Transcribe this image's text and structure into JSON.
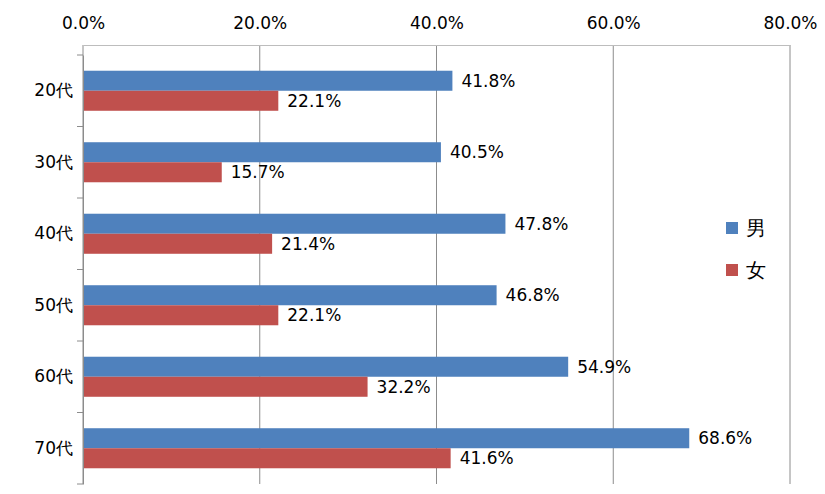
{
  "chart_data": {
    "type": "bar",
    "orientation": "horizontal",
    "categories": [
      "20代",
      "30代",
      "40代",
      "50代",
      "60代",
      "70代"
    ],
    "series": [
      {
        "name": "男",
        "color": "#4f81bd",
        "values": [
          41.8,
          40.5,
          47.8,
          46.8,
          54.9,
          68.6
        ],
        "value_labels": [
          "41.8%",
          "40.5%",
          "47.8%",
          "46.8%",
          "54.9%",
          "68.6%"
        ]
      },
      {
        "name": "女",
        "color": "#c0504d",
        "values": [
          22.1,
          15.7,
          21.4,
          22.1,
          32.2,
          41.6
        ],
        "value_labels": [
          "22.1%",
          "15.7%",
          "21.4%",
          "22.1%",
          "32.2%",
          "41.6%"
        ]
      }
    ],
    "xlim": [
      0,
      80
    ],
    "xticks": [
      {
        "value": 0,
        "label": "0.0%"
      },
      {
        "value": 20,
        "label": "20.0%"
      },
      {
        "value": 40,
        "label": "40.0%"
      },
      {
        "value": 60,
        "label": "60.0%"
      },
      {
        "value": 80,
        "label": "80.0%"
      }
    ],
    "grid": true,
    "data_labels": true,
    "legend": "right"
  }
}
